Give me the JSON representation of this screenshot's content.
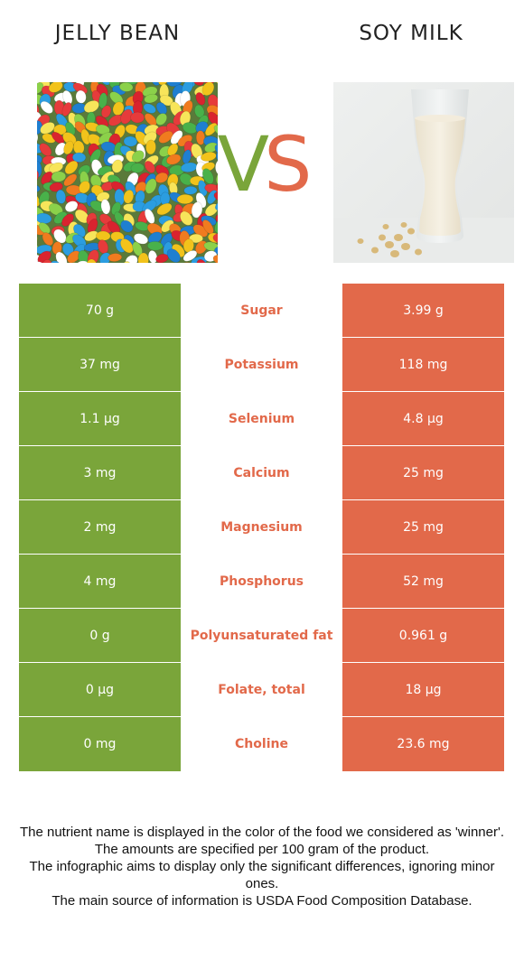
{
  "colors": {
    "left_food": "#7aa53a",
    "right_food": "#e2694a",
    "mid_background": "#ffffff"
  },
  "header": {
    "left_title": "JELLY BEAN",
    "right_title": "SOY MILK",
    "vs_v": "V",
    "vs_s": "S"
  },
  "rows": [
    {
      "left": "70 g",
      "nutrient": "Sugar",
      "right": "3.99 g",
      "winner": "right"
    },
    {
      "left": "37 mg",
      "nutrient": "Potassium",
      "right": "118 mg",
      "winner": "right"
    },
    {
      "left": "1.1 µg",
      "nutrient": "Selenium",
      "right": "4.8 µg",
      "winner": "right"
    },
    {
      "left": "3 mg",
      "nutrient": "Calcium",
      "right": "25 mg",
      "winner": "right"
    },
    {
      "left": "2 mg",
      "nutrient": "Magnesium",
      "right": "25 mg",
      "winner": "right"
    },
    {
      "left": "4 mg",
      "nutrient": "Phosphorus",
      "right": "52 mg",
      "winner": "right"
    },
    {
      "left": "0 g",
      "nutrient": "Polyunsaturated fat",
      "right": "0.961 g",
      "winner": "right"
    },
    {
      "left": "0 µg",
      "nutrient": "Folate, total",
      "right": "18 µg",
      "winner": "right"
    },
    {
      "left": "0 mg",
      "nutrient": "Choline",
      "right": "23.6 mg",
      "winner": "right"
    }
  ],
  "footer": [
    "The nutrient name is displayed in the color of the food we considered as 'winner'.",
    "The amounts are specified per 100 gram of the product.",
    "The infographic aims to display only the significant differences, ignoring minor ones.",
    "The main source of information is USDA Food Composition Database."
  ]
}
